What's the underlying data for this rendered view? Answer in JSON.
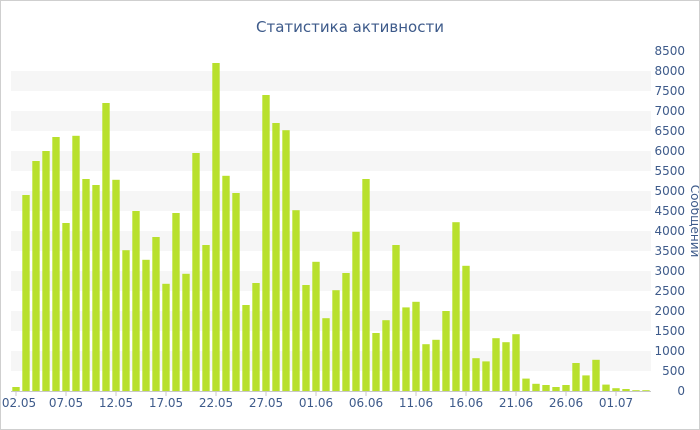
{
  "chart_data": {
    "type": "bar",
    "title": "Статистика активности",
    "xlabel": "",
    "ylabel": "Сообщений",
    "ylim": [
      0,
      8500
    ],
    "y_ticks": [
      0,
      500,
      1000,
      1500,
      2000,
      2500,
      3000,
      3500,
      4000,
      4500,
      5000,
      5500,
      6000,
      6500,
      7000,
      7500,
      8000,
      8500
    ],
    "x_tick_labels": [
      "02.05",
      "07.05",
      "12.05",
      "17.05",
      "22.05",
      "27.05",
      "01.06",
      "06.06",
      "11.06",
      "16.06",
      "21.06",
      "26.06",
      "01.07"
    ],
    "x_tick_every": 5,
    "grid": "horizontal bands",
    "legend": "none",
    "bar_color": "#b8e02c",
    "band_color": "#f6f6f6",
    "text_color": "#3d5a8a",
    "values": [
      100,
      4900,
      5750,
      6000,
      6350,
      4200,
      6380,
      5300,
      5150,
      7200,
      5280,
      3520,
      4500,
      3280,
      3850,
      2680,
      4450,
      2930,
      5950,
      3650,
      8200,
      5380,
      4950,
      2150,
      2700,
      7400,
      6700,
      6520,
      4520,
      2650,
      3230,
      1820,
      2520,
      2950,
      3980,
      5300,
      1450,
      1770,
      3650,
      2090,
      2230,
      1170,
      1280,
      2000,
      4220,
      3130,
      820,
      740,
      1320,
      1220,
      1420,
      310,
      180,
      150,
      100,
      150,
      700,
      390,
      780,
      160,
      70,
      50,
      20,
      20
    ]
  }
}
